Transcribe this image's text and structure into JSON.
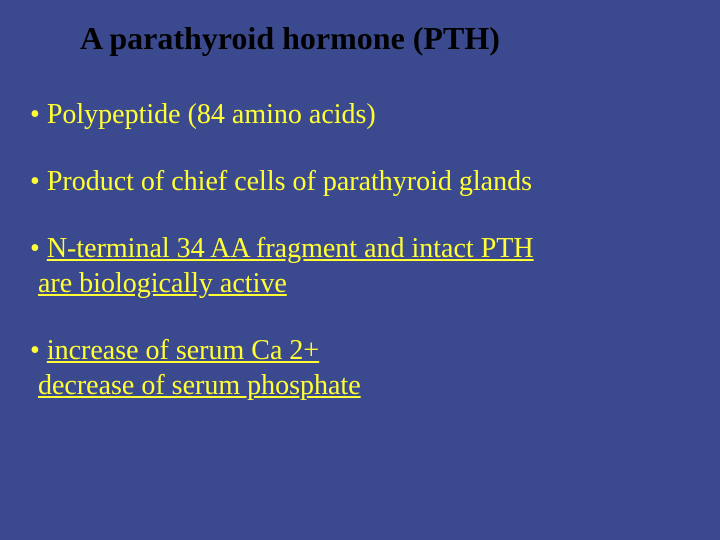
{
  "slide": {
    "title": "A parathyroid hormone (PTH)",
    "background_color": "#3b4a8f",
    "title_color": "#000000",
    "bullet_color": "#ffff33",
    "title_fontsize": 32,
    "bullet_fontsize": 28,
    "bullets": [
      {
        "text": "Polypeptide (84 amino acids)",
        "underline": false
      },
      {
        "text": "Product of chief cells of parathyroid glands",
        "underline": false
      },
      {
        "text": "N-terminal 34 AA fragment and intact PTH",
        "text_line2": "are biologically active",
        "underline": true
      },
      {
        "text": "increase of serum Ca 2+",
        "text_line2": "decrease of serum phosphate",
        "underline": true
      }
    ]
  }
}
